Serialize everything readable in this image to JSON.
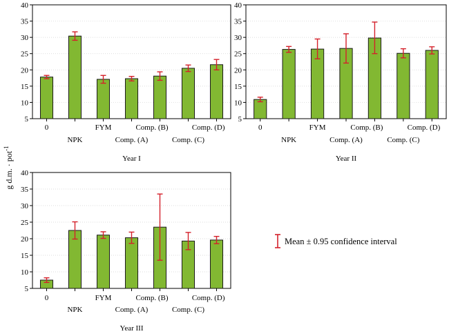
{
  "y_axis_label": "g d.m. · pot",
  "y_axis_label_sup": "-1",
  "legend_label": "Mean ± 0.95 confidence interval",
  "colors": {
    "bar": "#82b832",
    "bar_edge": "#1a1a1a",
    "error": "#d4202a",
    "axis": "#000000"
  },
  "chart_data": [
    {
      "type": "bar",
      "title": "Year I",
      "categories": [
        "0",
        "NPK",
        "FYM",
        "Comp. (A)",
        "Comp. (B)",
        "Comp. (C)",
        "Comp. (D)"
      ],
      "values": [
        17.8,
        30.4,
        17.1,
        17.3,
        18.1,
        20.5,
        21.6
      ],
      "ci_low": [
        17.3,
        29.1,
        15.9,
        16.6,
        16.8,
        19.5,
        20.0
      ],
      "ci_high": [
        18.3,
        31.7,
        18.3,
        18.0,
        19.4,
        21.5,
        23.2
      ],
      "ylim": [
        5,
        40
      ],
      "yticks": [
        5,
        10,
        15,
        20,
        25,
        30,
        35,
        40
      ]
    },
    {
      "type": "bar",
      "title": "Year II",
      "categories": [
        "0",
        "NPK",
        "FYM",
        "Comp. (A)",
        "Comp. (B)",
        "Comp. (C)",
        "Comp. (D)"
      ],
      "values": [
        10.9,
        26.3,
        26.4,
        26.6,
        29.8,
        25.1,
        26.0
      ],
      "ci_low": [
        10.2,
        25.4,
        23.4,
        22.1,
        25.0,
        23.7,
        24.9
      ],
      "ci_high": [
        11.6,
        27.2,
        29.5,
        31.1,
        34.7,
        26.5,
        27.1
      ],
      "ylim": [
        5,
        40
      ],
      "yticks": [
        5,
        10,
        15,
        20,
        25,
        30,
        35,
        40
      ]
    },
    {
      "type": "bar",
      "title": "Year III",
      "categories": [
        "0",
        "NPK",
        "FYM",
        "Comp. (A)",
        "Comp. (B)",
        "Comp. (C)",
        "Comp. (D)"
      ],
      "values": [
        7.5,
        22.5,
        21.1,
        20.3,
        23.5,
        19.3,
        19.6
      ],
      "ci_low": [
        6.8,
        19.9,
        20.1,
        18.6,
        13.5,
        16.7,
        18.5
      ],
      "ci_high": [
        8.2,
        25.1,
        22.1,
        22.0,
        33.5,
        21.9,
        20.7
      ],
      "ylim": [
        5,
        40
      ],
      "yticks": [
        5,
        10,
        15,
        20,
        25,
        30,
        35,
        40
      ]
    }
  ]
}
